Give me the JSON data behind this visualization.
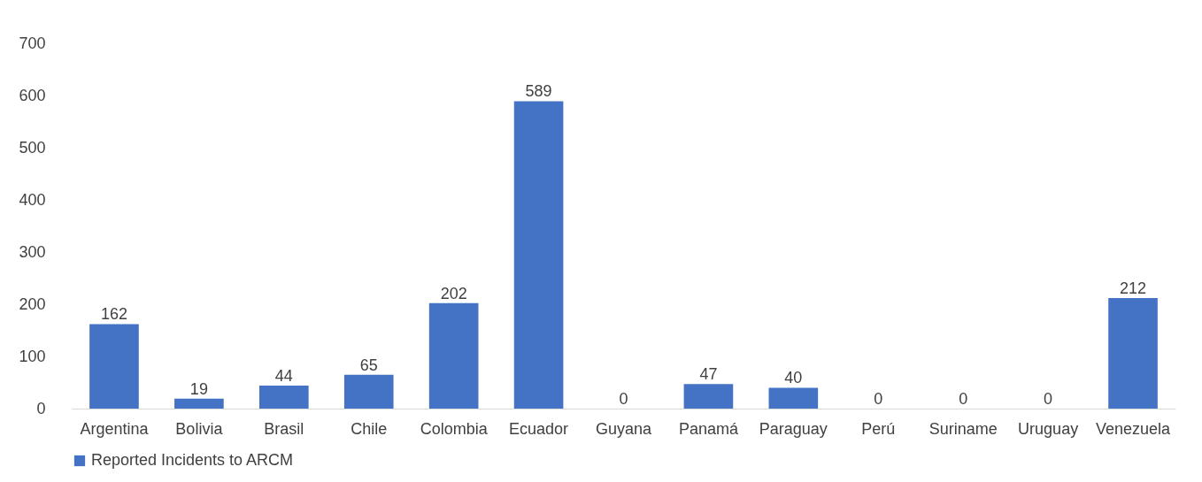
{
  "chart_data": {
    "type": "bar",
    "categories": [
      "Argentina",
      "Bolivia",
      "Brasil",
      "Chile",
      "Colombia",
      "Ecuador",
      "Guyana",
      "Panamá",
      "Paraguay",
      "Perú",
      "Suriname",
      "Uruguay",
      "Venezuela"
    ],
    "series": [
      {
        "name": "Reported Incidents to ARCM",
        "color": "#4472c4",
        "values": [
          162,
          19,
          44,
          65,
          202,
          589,
          0,
          47,
          40,
          0,
          0,
          0,
          212
        ]
      }
    ],
    "ylim": [
      0,
      700
    ],
    "yticks": [
      0,
      100,
      200,
      300,
      400,
      500,
      600,
      700
    ],
    "grid": false,
    "legend": "bottom",
    "data_labels": true
  }
}
